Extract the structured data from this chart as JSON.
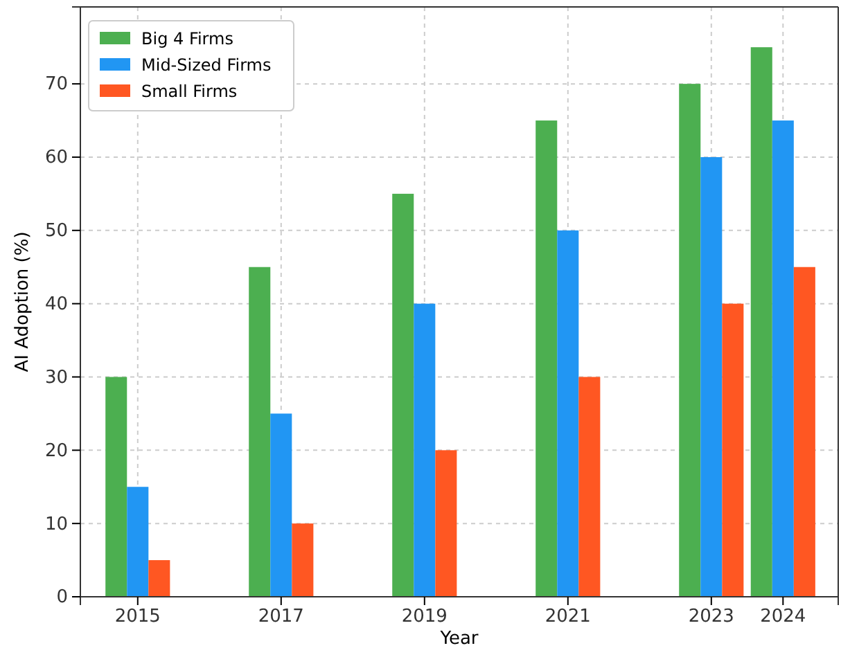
{
  "chart_data": {
    "type": "bar",
    "xlabel": "Year",
    "ylabel": "AI Adoption (%)",
    "x": [
      2015,
      2017,
      2019,
      2021,
      2023,
      2024
    ],
    "series": [
      {
        "name": "Big 4 Firms",
        "color": "#4caf50",
        "values": [
          30,
          45,
          55,
          65,
          70,
          75
        ]
      },
      {
        "name": "Mid-Sized Firms",
        "color": "#2196f3",
        "values": [
          15,
          25,
          40,
          50,
          60,
          65
        ]
      },
      {
        "name": "Small Firms",
        "color": "#ff5722",
        "values": [
          5,
          10,
          20,
          30,
          40,
          45
        ]
      }
    ],
    "xlim": [
      2014.2,
      2024.77
    ],
    "xticks": [
      2015,
      2017,
      2019,
      2021,
      2023,
      2024
    ],
    "ylim": [
      0,
      80.5
    ],
    "yticks": [
      0,
      10,
      20,
      30,
      40,
      50,
      60,
      70
    ],
    "grid": true,
    "legend": "top left"
  }
}
